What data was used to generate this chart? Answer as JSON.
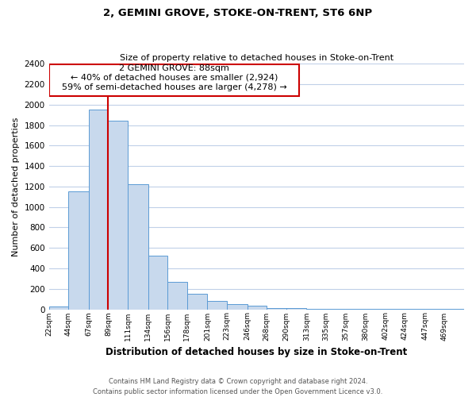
{
  "title": "2, GEMINI GROVE, STOKE-ON-TRENT, ST6 6NP",
  "subtitle": "Size of property relative to detached houses in Stoke-on-Trent",
  "xlabel": "Distribution of detached houses by size in Stoke-on-Trent",
  "ylabel": "Number of detached properties",
  "bin_labels": [
    "22sqm",
    "44sqm",
    "67sqm",
    "89sqm",
    "111sqm",
    "134sqm",
    "156sqm",
    "178sqm",
    "201sqm",
    "223sqm",
    "246sqm",
    "268sqm",
    "290sqm",
    "313sqm",
    "335sqm",
    "357sqm",
    "380sqm",
    "402sqm",
    "424sqm",
    "447sqm",
    "469sqm"
  ],
  "bar_heights": [
    25,
    1150,
    1950,
    1840,
    1220,
    520,
    265,
    148,
    78,
    50,
    38,
    15,
    10,
    5,
    3,
    2,
    2,
    1,
    1,
    1,
    1
  ],
  "bar_color": "#c8d9ed",
  "bar_edge_color": "#5b9bd5",
  "grid_color": "#c0d0e8",
  "vline_color": "#cc0000",
  "annotation_line1": "2 GEMINI GROVE: 88sqm",
  "annotation_line2": "← 40% of detached houses are smaller (2,924)",
  "annotation_line3": "59% of semi-detached houses are larger (4,278) →",
  "annotation_box_edge": "#cc0000",
  "ylim": [
    0,
    2400
  ],
  "yticks": [
    0,
    200,
    400,
    600,
    800,
    1000,
    1200,
    1400,
    1600,
    1800,
    2000,
    2200,
    2400
  ],
  "footer1": "Contains HM Land Registry data © Crown copyright and database right 2024.",
  "footer2": "Contains public sector information licensed under the Open Government Licence v3.0.",
  "bin_edges": [
    22,
    44,
    67,
    89,
    111,
    134,
    156,
    178,
    201,
    223,
    246,
    268,
    290,
    313,
    335,
    357,
    380,
    402,
    424,
    447,
    469,
    491
  ]
}
